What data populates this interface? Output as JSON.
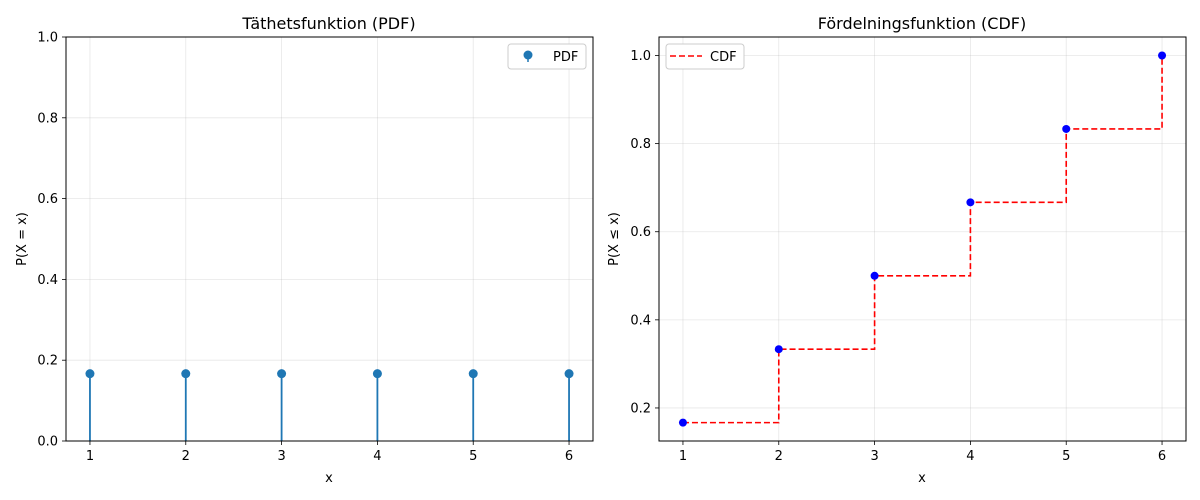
{
  "chart_data": [
    {
      "type": "stem",
      "title": "Täthetsfunktion (PDF)",
      "xlabel": "x",
      "ylabel": "P(X = x)",
      "xlim": [
        0.75,
        6.25
      ],
      "ylim": [
        0,
        1.0
      ],
      "xticks": [
        1,
        2,
        3,
        4,
        5,
        6
      ],
      "yticks": [
        0.0,
        0.2,
        0.4,
        0.6,
        0.8,
        1.0
      ],
      "ytick_labels": [
        "0.0",
        "0.2",
        "0.4",
        "0.6",
        "0.8",
        "1.0"
      ],
      "grid": true,
      "legend": "top-right",
      "series": [
        {
          "name": "PDF",
          "color": "#1f77b4",
          "x": [
            1,
            2,
            3,
            4,
            5,
            6
          ],
          "y": [
            0.1667,
            0.1667,
            0.1667,
            0.1667,
            0.1667,
            0.1667
          ]
        }
      ]
    },
    {
      "type": "step",
      "title": "Fördelningsfunktion (CDF)",
      "xlabel": "x",
      "ylabel": "P(X ≤ x)",
      "xlim": [
        0.75,
        6.25
      ],
      "ylim": [
        0.125,
        1.042
      ],
      "xticks": [
        1,
        2,
        3,
        4,
        5,
        6
      ],
      "yticks": [
        0.2,
        0.4,
        0.6,
        0.8,
        1.0
      ],
      "ytick_labels": [
        "0.2",
        "0.4",
        "0.6",
        "0.8",
        "1.0"
      ],
      "grid": true,
      "legend": "top-left",
      "series": [
        {
          "name": "CDF",
          "color": "#ff0000",
          "style": "dashed",
          "x": [
            1,
            2,
            3,
            4,
            5,
            6
          ],
          "y": [
            0.1667,
            0.3333,
            0.5,
            0.6667,
            0.8333,
            1.0
          ],
          "marker_color": "#0000ff"
        }
      ]
    }
  ]
}
